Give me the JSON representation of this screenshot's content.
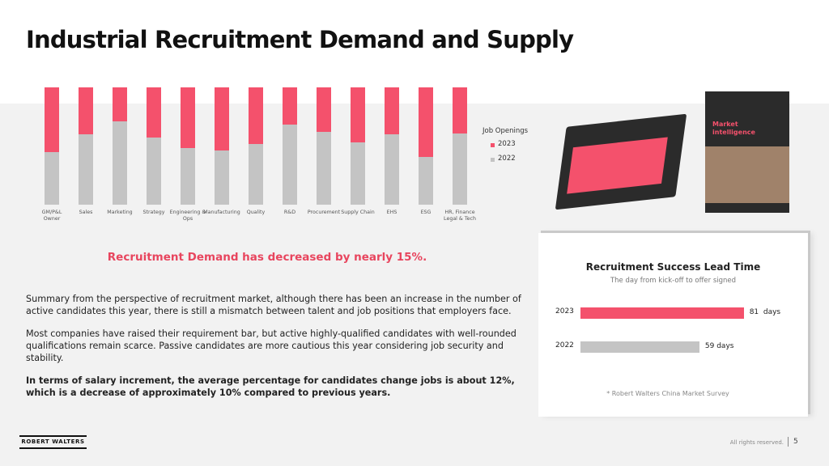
{
  "header": {
    "title": "Industrial Recruitment Demand and Supply"
  },
  "chart_data": [
    {
      "type": "stacked-bar",
      "legend_title": "Job Openings",
      "categories": [
        "GM/P&L Owner",
        "Sales",
        "Marketing",
        "Strategy",
        "Engineering & Ops",
        "Manufacturing",
        "Quality",
        "R&D",
        "Procurement",
        "Supply Chain",
        "EHS",
        "ESG",
        "HR, Finance Legal & Tech"
      ],
      "series": [
        {
          "name": "2023",
          "color": "#f4516c",
          "values": [
            55,
            40,
            29,
            43,
            52,
            54,
            48,
            32,
            38,
            47,
            40,
            59,
            39
          ]
        },
        {
          "name": "2022",
          "color": "#c4c4c4",
          "values": [
            45,
            60,
            71,
            57,
            48,
            46,
            52,
            68,
            62,
            53,
            60,
            41,
            61
          ]
        }
      ]
    },
    {
      "type": "hbar",
      "title": "Recruitment Success Lead Time",
      "subtitle": "The day from kick-off to offer signed",
      "categories": [
        "2023",
        "2022"
      ],
      "values": [
        81,
        59
      ],
      "value_labels": [
        "81  days",
        "59 days"
      ],
      "colors": [
        "#f4516c",
        "#c4c4c4"
      ],
      "note": "* Robert Walters China Market Survey"
    }
  ],
  "highlight": "Recruitment Demand has decreased by nearly 15%.",
  "paragraphs": [
    "Summary from the perspective of recruitment market, although there has been an increase in the number of active candidates this year, there is still a mismatch between talent and job positions that employers face.",
    "Most companies have raised their requirement bar, but active highly-qualified candidates with well-rounded qualifications remain scarce. Passive candidates are more cautious this year considering job security and stability.",
    "In terms of salary increment, the average percentage for candidates change jobs is about 12%, which is a decrease of approximately 10% compared to previous years."
  ],
  "book": {
    "title": "Market intelligence"
  },
  "footer": {
    "logo": "ROBERT WALTERS",
    "rights": "All rights reserved.",
    "page": "5"
  }
}
